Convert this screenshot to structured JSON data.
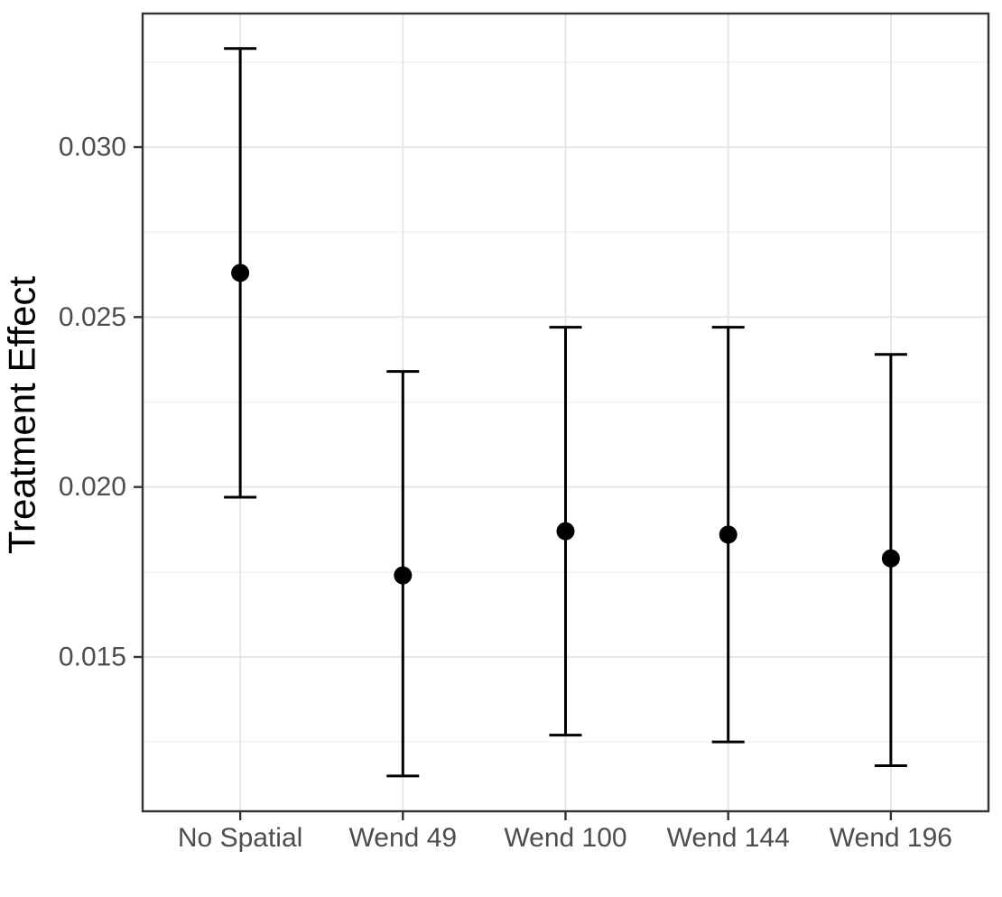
{
  "chart_data": {
    "type": "pointrange",
    "title": "",
    "xlabel": "",
    "ylabel": "Treatment Effect",
    "categories": [
      "No Spatial",
      "Wend 49",
      "Wend 100",
      "Wend 144",
      "Wend 196"
    ],
    "series": [
      {
        "name": "estimate",
        "values": [
          0.0263,
          0.0174,
          0.0187,
          0.0186,
          0.0179
        ]
      },
      {
        "name": "ci_lower",
        "values": [
          0.0197,
          0.0115,
          0.0127,
          0.0125,
          0.0118
        ]
      },
      {
        "name": "ci_upper",
        "values": [
          0.0329,
          0.0234,
          0.0247,
          0.0247,
          0.0239
        ]
      }
    ],
    "y_ticks": [
      0.015,
      0.02,
      0.025,
      0.03
    ],
    "y_tick_labels": [
      "0.015",
      "0.020",
      "0.025",
      "0.030"
    ],
    "y_minor_ticks": [
      0.0125,
      0.0175,
      0.0225,
      0.0275,
      0.0325
    ],
    "ylim": [
      0.01046,
      0.03393
    ],
    "grid": true,
    "legend_position": "none",
    "colors": {
      "point": "#000000",
      "errorbar": "#000000",
      "grid_major": "#E6E6E6",
      "grid_minor": "#F2F2F2",
      "panel_border": "#333333",
      "tick_mark": "#333333",
      "tick_label": "#4D4D4D",
      "axis_title": "#000000",
      "background": "#FFFFFF"
    }
  }
}
